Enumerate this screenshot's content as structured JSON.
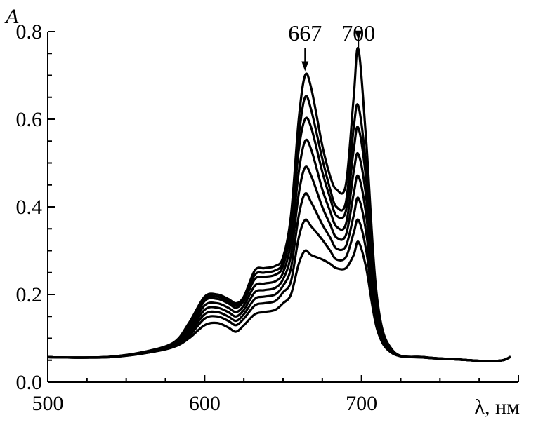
{
  "chart_data": {
    "type": "line",
    "title": "",
    "xlabel": "λ, нм",
    "ylabel": "A",
    "xlim": [
      500,
      800
    ],
    "ylim": [
      0,
      0.8
    ],
    "x_ticks": [
      500,
      600,
      700
    ],
    "x_tick_labels": [
      "500",
      "600",
      "700"
    ],
    "y_ticks": [
      0.0,
      0.2,
      0.4,
      0.6,
      0.8
    ],
    "y_tick_labels": [
      "0.0",
      "0.2",
      "0.4",
      "0.6",
      "0.8"
    ],
    "grid": false,
    "legend": "none",
    "line_color": "#000000",
    "annotations": [
      {
        "text": "667",
        "x": 664,
        "arrow_tip_y": 0.7
      },
      {
        "text": "700",
        "x": 698,
        "arrow_tip_y": 0.77
      }
    ],
    "x": [
      500,
      520,
      540,
      560,
      580,
      590,
      600,
      608,
      615,
      620,
      625,
      632,
      638,
      645,
      650,
      655,
      660,
      664,
      668,
      675,
      680,
      684,
      690,
      695,
      698,
      703,
      710,
      720,
      740,
      760,
      780,
      790,
      795
    ],
    "series": [
      {
        "values": [
          0.057,
          0.056,
          0.057,
          0.065,
          0.08,
          0.1,
          0.13,
          0.135,
          0.125,
          0.115,
          0.13,
          0.155,
          0.16,
          0.165,
          0.18,
          0.2,
          0.27,
          0.3,
          0.29,
          0.28,
          0.27,
          0.26,
          0.26,
          0.29,
          0.32,
          0.26,
          0.12,
          0.065,
          0.056,
          0.052,
          0.048,
          0.05,
          0.058
        ]
      },
      {
        "values": [
          0.057,
          0.056,
          0.057,
          0.065,
          0.08,
          0.105,
          0.145,
          0.15,
          0.14,
          0.13,
          0.145,
          0.175,
          0.18,
          0.185,
          0.205,
          0.23,
          0.33,
          0.37,
          0.355,
          0.325,
          0.3,
          0.28,
          0.285,
          0.34,
          0.37,
          0.3,
          0.13,
          0.066,
          0.056,
          0.052,
          0.048,
          0.05,
          0.058
        ]
      },
      {
        "values": [
          0.057,
          0.056,
          0.057,
          0.066,
          0.082,
          0.11,
          0.155,
          0.16,
          0.15,
          0.14,
          0.155,
          0.19,
          0.195,
          0.2,
          0.22,
          0.26,
          0.38,
          0.43,
          0.41,
          0.36,
          0.33,
          0.305,
          0.31,
          0.38,
          0.42,
          0.34,
          0.14,
          0.067,
          0.056,
          0.052,
          0.048,
          0.05,
          0.058
        ]
      },
      {
        "values": [
          0.057,
          0.056,
          0.058,
          0.066,
          0.083,
          0.115,
          0.165,
          0.17,
          0.16,
          0.15,
          0.165,
          0.205,
          0.21,
          0.215,
          0.235,
          0.29,
          0.43,
          0.49,
          0.47,
          0.4,
          0.36,
          0.33,
          0.335,
          0.43,
          0.47,
          0.38,
          0.15,
          0.068,
          0.057,
          0.052,
          0.048,
          0.05,
          0.058
        ]
      },
      {
        "values": [
          0.057,
          0.056,
          0.058,
          0.067,
          0.085,
          0.12,
          0.175,
          0.18,
          0.17,
          0.16,
          0.175,
          0.22,
          0.225,
          0.23,
          0.25,
          0.32,
          0.48,
          0.55,
          0.53,
          0.44,
          0.39,
          0.355,
          0.36,
          0.48,
          0.52,
          0.42,
          0.16,
          0.069,
          0.057,
          0.052,
          0.048,
          0.05,
          0.058
        ]
      },
      {
        "values": [
          0.057,
          0.056,
          0.058,
          0.067,
          0.087,
          0.125,
          0.185,
          0.19,
          0.18,
          0.17,
          0.185,
          0.235,
          0.24,
          0.245,
          0.265,
          0.35,
          0.53,
          0.6,
          0.58,
          0.48,
          0.42,
          0.38,
          0.39,
          0.53,
          0.58,
          0.46,
          0.17,
          0.07,
          0.057,
          0.052,
          0.048,
          0.05,
          0.058
        ]
      },
      {
        "values": [
          0.057,
          0.056,
          0.058,
          0.068,
          0.088,
          0.13,
          0.19,
          0.195,
          0.185,
          0.175,
          0.19,
          0.245,
          0.25,
          0.255,
          0.275,
          0.37,
          0.56,
          0.65,
          0.62,
          0.51,
          0.44,
          0.4,
          0.41,
          0.58,
          0.63,
          0.49,
          0.18,
          0.071,
          0.057,
          0.052,
          0.048,
          0.05,
          0.058
        ]
      },
      {
        "values": [
          0.057,
          0.056,
          0.058,
          0.068,
          0.09,
          0.135,
          0.195,
          0.2,
          0.19,
          0.18,
          0.195,
          0.255,
          0.26,
          0.265,
          0.285,
          0.38,
          0.6,
          0.7,
          0.67,
          0.54,
          0.47,
          0.44,
          0.45,
          0.65,
          0.76,
          0.55,
          0.19,
          0.072,
          0.057,
          0.052,
          0.048,
          0.05,
          0.058
        ]
      }
    ]
  }
}
